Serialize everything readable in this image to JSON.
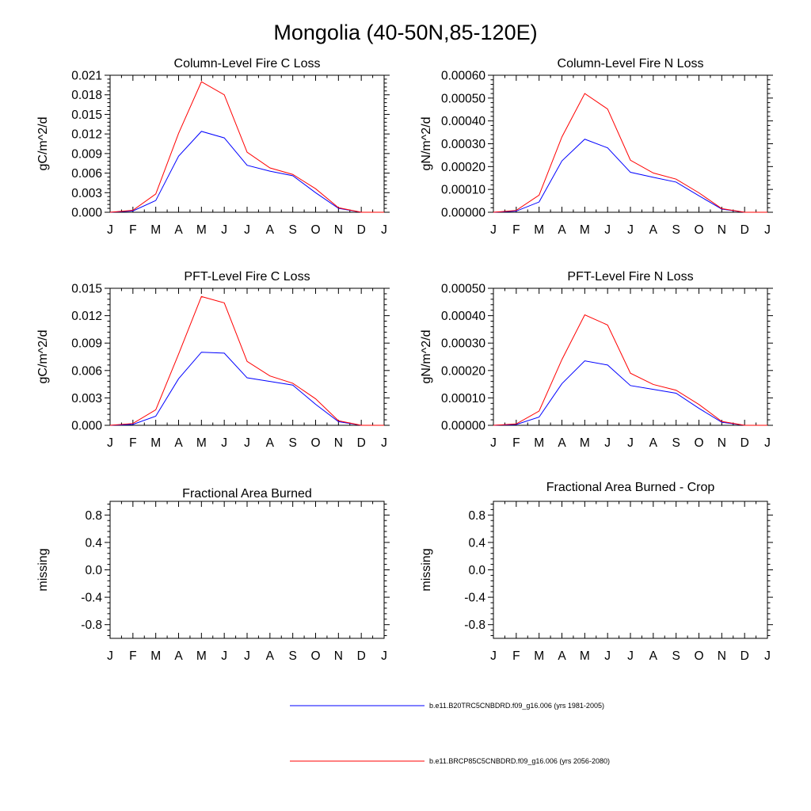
{
  "figure": {
    "title": "Mongolia (40-50N,85-120E)"
  },
  "colors": {
    "series_1": "#0000ff",
    "series_2": "#ff0000"
  },
  "legend": {
    "entries": [
      {
        "label": "b.e11.B20TRC5CNBDRD.f09_g16.006 (yrs 1981-2005)",
        "color": "#0000ff"
      },
      {
        "label": "b.e11.BRCP85C5CNBDRD.f09_g16.006 (yrs 2056-2080)",
        "color": "#ff0000"
      }
    ]
  },
  "chart_data": [
    {
      "type": "line",
      "title": "Column-Level Fire C Loss",
      "ylabel": "gC/m^2/d",
      "xlabel": "",
      "categories": [
        "J",
        "F",
        "M",
        "A",
        "M",
        "J",
        "J",
        "A",
        "S",
        "O",
        "N",
        "D",
        "J"
      ],
      "ylim": [
        0,
        0.021
      ],
      "yticks": [
        "0.000",
        "0.003",
        "0.006",
        "0.009",
        "0.012",
        "0.015",
        "0.018",
        "0.021"
      ],
      "series": [
        {
          "color": "#0000ff",
          "values": [
            0.0,
            0.0002,
            0.0018,
            0.0086,
            0.0124,
            0.0114,
            0.0072,
            0.0063,
            0.0056,
            0.003,
            0.0006,
            0.0,
            0.0
          ]
        },
        {
          "color": "#ff0000",
          "values": [
            0.0,
            0.0003,
            0.0028,
            0.0121,
            0.02,
            0.018,
            0.0092,
            0.0068,
            0.0058,
            0.0036,
            0.0007,
            0.0,
            0.0
          ]
        }
      ]
    },
    {
      "type": "line",
      "title": "Column-Level Fire N Loss",
      "ylabel": "gN/m^2/d",
      "xlabel": "",
      "categories": [
        "J",
        "F",
        "M",
        "A",
        "M",
        "J",
        "J",
        "A",
        "S",
        "O",
        "N",
        "D",
        "J"
      ],
      "ylim": [
        0,
        0.0006
      ],
      "yticks": [
        "0.00000",
        "0.00010",
        "0.00020",
        "0.00030",
        "0.00040",
        "0.00050",
        "0.00060"
      ],
      "series": [
        {
          "color": "#0000ff",
          "values": [
            0.0,
            5e-06,
            4.5e-05,
            0.000225,
            0.00032,
            0.000282,
            0.000175,
            0.000153,
            0.000132,
            7.2e-05,
            1.4e-05,
            0.0,
            0.0
          ]
        },
        {
          "color": "#ff0000",
          "values": [
            0.0,
            8e-06,
            7.5e-05,
            0.00033,
            0.00052,
            0.000452,
            0.000228,
            0.000172,
            0.000145,
            8.5e-05,
            1.6e-05,
            0.0,
            0.0
          ]
        }
      ]
    },
    {
      "type": "line",
      "title": "PFT-Level Fire C Loss",
      "ylabel": "gC/m^2/d",
      "xlabel": "",
      "categories": [
        "J",
        "F",
        "M",
        "A",
        "M",
        "J",
        "J",
        "A",
        "S",
        "O",
        "N",
        "D",
        "J"
      ],
      "ylim": [
        0,
        0.015
      ],
      "yticks": [
        "0.000",
        "0.003",
        "0.006",
        "0.009",
        "0.012",
        "0.015"
      ],
      "series": [
        {
          "color": "#0000ff",
          "values": [
            0.0,
            0.0001,
            0.001,
            0.0051,
            0.008,
            0.0079,
            0.0052,
            0.0048,
            0.0044,
            0.0023,
            0.0004,
            0.0,
            0.0
          ]
        },
        {
          "color": "#ff0000",
          "values": [
            0.0,
            0.0002,
            0.0017,
            0.0078,
            0.0141,
            0.0134,
            0.007,
            0.0054,
            0.0046,
            0.0029,
            0.0005,
            0.0,
            0.0
          ]
        }
      ]
    },
    {
      "type": "line",
      "title": "PFT-Level Fire N Loss",
      "ylabel": "gN/m^2/d",
      "xlabel": "",
      "categories": [
        "J",
        "F",
        "M",
        "A",
        "M",
        "J",
        "J",
        "A",
        "S",
        "O",
        "N",
        "D",
        "J"
      ],
      "ylim": [
        0,
        0.0005
      ],
      "yticks": [
        "0.00000",
        "0.00010",
        "0.00020",
        "0.00030",
        "0.00040",
        "0.00050"
      ],
      "series": [
        {
          "color": "#0000ff",
          "values": [
            0.0,
            3e-06,
            3e-05,
            0.000152,
            0.000235,
            0.00022,
            0.000145,
            0.000131,
            0.000117,
            6.2e-05,
            1.1e-05,
            0.0,
            0.0
          ]
        },
        {
          "color": "#ff0000",
          "values": [
            0.0,
            5e-06,
            5.2e-05,
            0.00024,
            0.000403,
            0.000366,
            0.00019,
            0.000149,
            0.000128,
            7.6e-05,
            1.4e-05,
            0.0,
            0.0
          ]
        }
      ]
    },
    {
      "type": "line",
      "title": "Fractional Area Burned",
      "ylabel": "missing",
      "xlabel": "",
      "categories": [
        "J",
        "F",
        "M",
        "A",
        "M",
        "J",
        "J",
        "A",
        "S",
        "O",
        "N",
        "D",
        "J"
      ],
      "ylim": [
        -1.0,
        1.0
      ],
      "yticks": [
        "-0.8",
        "-0.4",
        "0.0",
        "0.4",
        "0.8"
      ],
      "ytick_values": [
        -0.8,
        -0.4,
        0.0,
        0.4,
        0.8
      ],
      "series": []
    },
    {
      "type": "line",
      "title": "Fractional Area Burned - Crop",
      "ylabel": "missing",
      "xlabel": "",
      "categories": [
        "J",
        "F",
        "M",
        "A",
        "M",
        "J",
        "J",
        "A",
        "S",
        "O",
        "N",
        "D",
        "J"
      ],
      "ylim": [
        -1.0,
        1.0
      ],
      "yticks": [
        "-0.8",
        "-0.4",
        "0.0",
        "0.4",
        "0.8"
      ],
      "ytick_values": [
        -0.8,
        -0.4,
        0.0,
        0.4,
        0.8
      ],
      "series": []
    }
  ]
}
